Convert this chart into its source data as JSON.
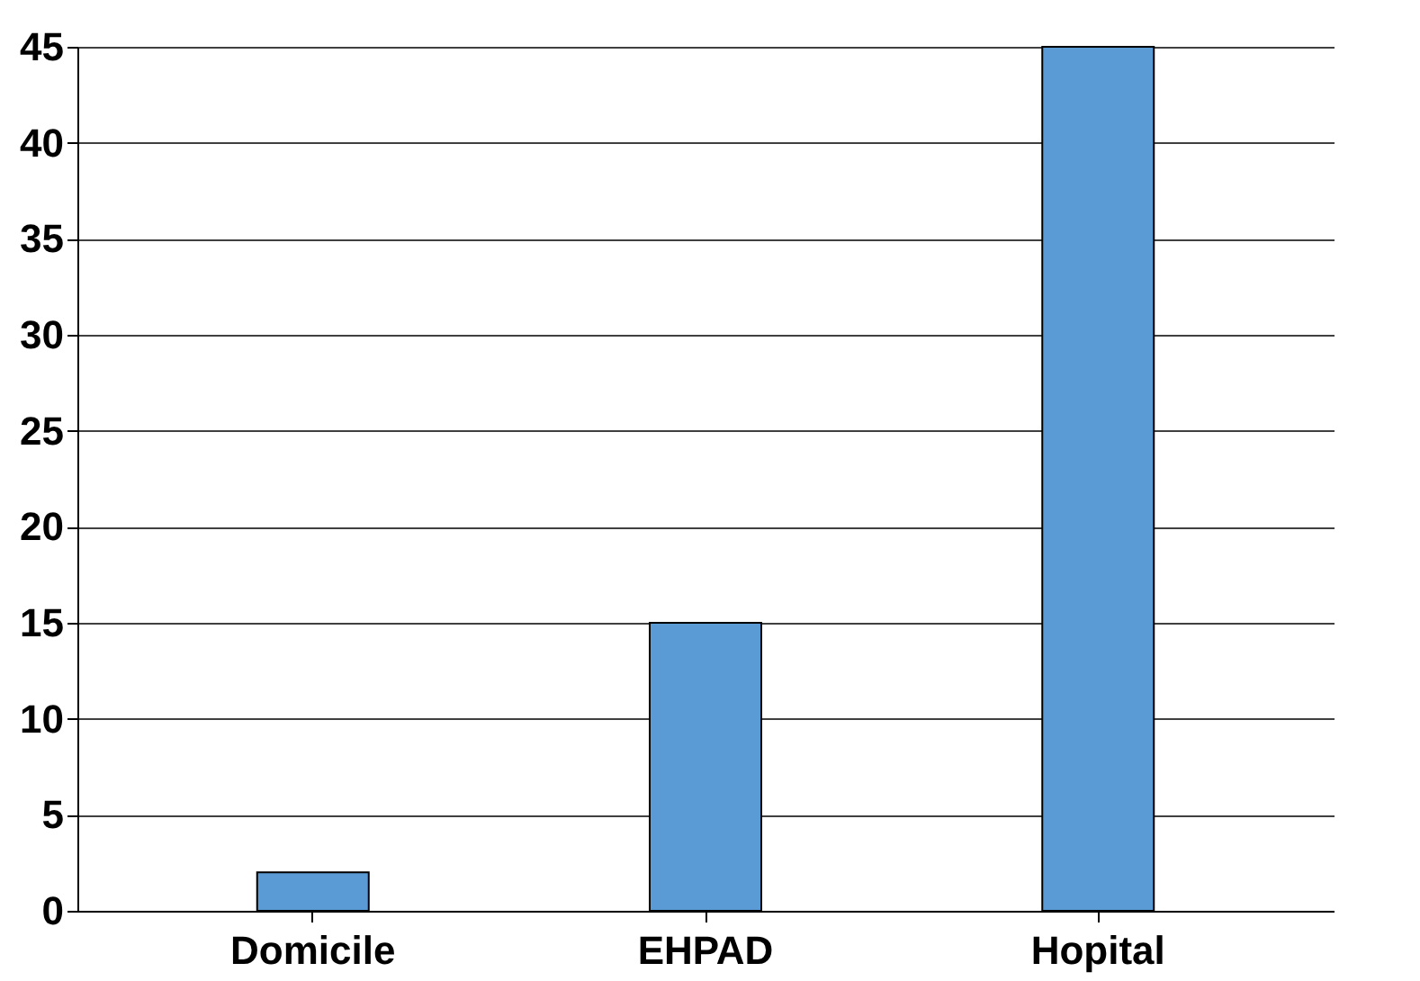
{
  "chart_data": {
    "type": "bar",
    "categories": [
      "Domicile",
      "EHPAD",
      "Hopital"
    ],
    "values": [
      2,
      15,
      45
    ],
    "color": "#5b9bd5",
    "ylim": [
      0,
      45
    ],
    "yticks": [
      0,
      5,
      10,
      15,
      20,
      25,
      30,
      35,
      40,
      45
    ],
    "grid": "y"
  }
}
